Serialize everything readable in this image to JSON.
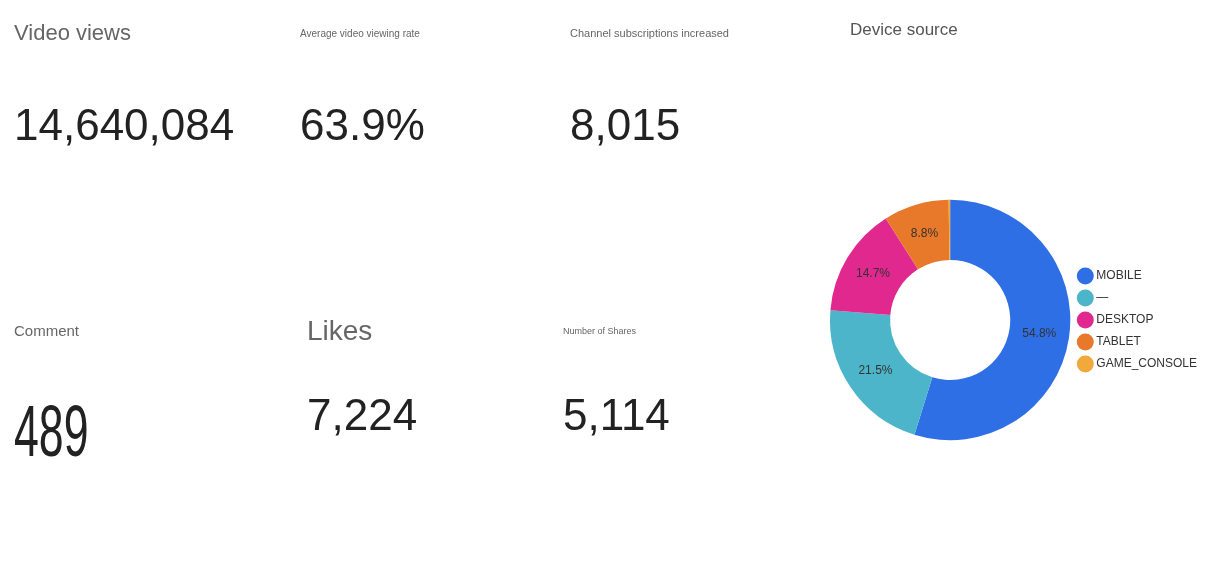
{
  "chart_data": [
    {
      "type": "other",
      "title": "Video views",
      "annotations": [
        "14,640,084"
      ]
    },
    {
      "type": "other",
      "title": "Average video viewing rate",
      "annotations": [
        "63.9%"
      ]
    },
    {
      "type": "other",
      "title": "Channel subscriptions increased",
      "annotations": [
        "8,015"
      ]
    },
    {
      "type": "other",
      "title": "Comment",
      "annotations": [
        "489"
      ]
    },
    {
      "type": "other",
      "title": "Likes",
      "annotations": [
        "7,224"
      ]
    },
    {
      "type": "other",
      "title": "Number of Shares",
      "annotations": [
        "5,114"
      ]
    },
    {
      "type": "donut",
      "title": "Device source",
      "categories": [
        "MOBILE",
        "—",
        "DESKTOP",
        "TABLET",
        "GAME_CONSOLE"
      ],
      "values": [
        54.8,
        21.5,
        14.7,
        8.8,
        0.2
      ],
      "colors": [
        "#2f6fe6",
        "#4db5c9",
        "#e0288f",
        "#e8782a",
        "#f2a93b"
      ],
      "value_labels": [
        "54.8%",
        "21.5%",
        "14.7%",
        "8.8%",
        null
      ],
      "legend": "right"
    }
  ]
}
